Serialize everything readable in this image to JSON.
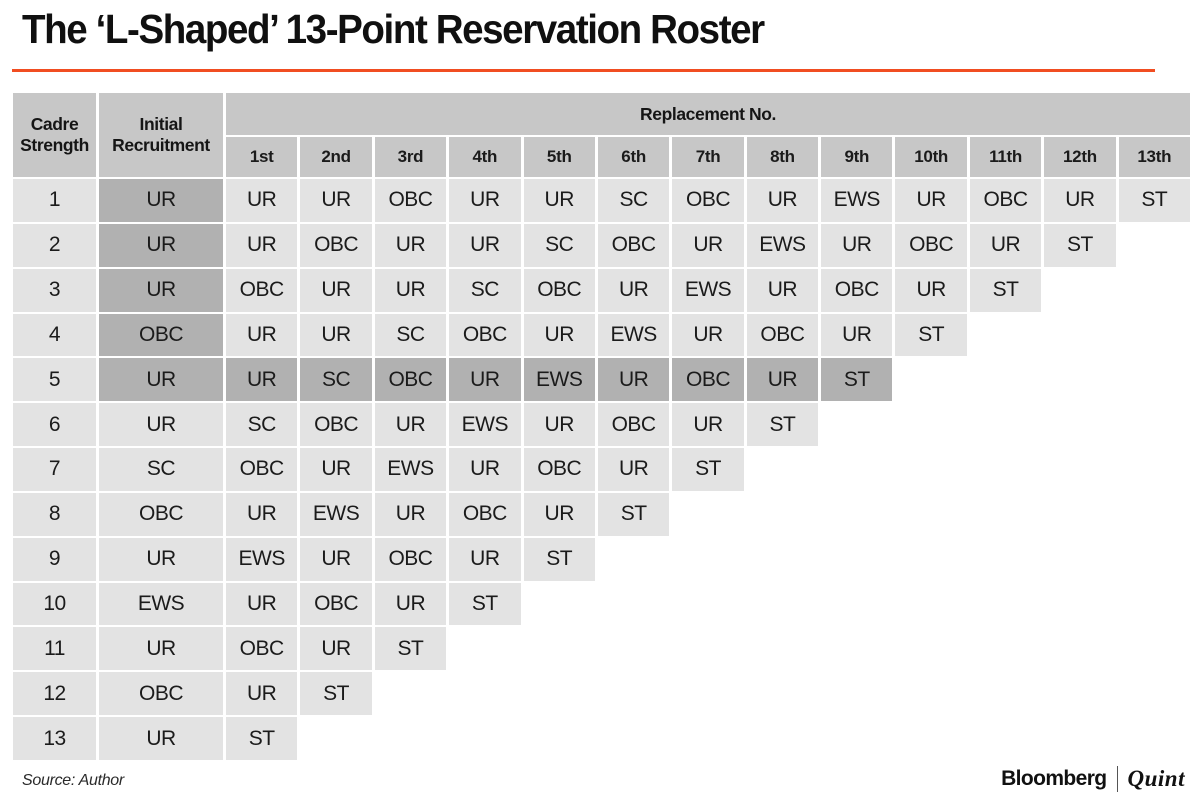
{
  "title": "The ‘L-Shaped’ 13-Point Reservation Roster",
  "colors": {
    "accent_orange": "#f14d21",
    "header_gray": "#c7c7c7",
    "cell_gray": "#e3e3e3",
    "highlight_gray": "#b1b1b1",
    "text": "#1b1b1b"
  },
  "footer": {
    "source": "Source: Author",
    "brand_left": "Bloomberg",
    "brand_right": "Quint"
  },
  "chart_data": {
    "type": "table",
    "title": "The ‘L-Shaped’ 13-Point Reservation Roster",
    "header": {
      "cadre": "Cadre Strength",
      "initial": "Initial Recruitment",
      "replacement": "Replacement No."
    },
    "ordinals": [
      "1st",
      "2nd",
      "3rd",
      "4th",
      "5th",
      "6th",
      "7th",
      "8th",
      "9th",
      "10th",
      "11th",
      "12th",
      "13th"
    ],
    "rows": [
      {
        "cadre": "1",
        "initial": "UR",
        "initial_highlight": true,
        "highlight": false,
        "replacements": [
          "UR",
          "UR",
          "OBC",
          "UR",
          "UR",
          "SC",
          "OBC",
          "UR",
          "EWS",
          "UR",
          "OBC",
          "UR",
          "ST"
        ]
      },
      {
        "cadre": "2",
        "initial": "UR",
        "initial_highlight": true,
        "highlight": false,
        "replacements": [
          "UR",
          "OBC",
          "UR",
          "UR",
          "SC",
          "OBC",
          "UR",
          "EWS",
          "UR",
          "OBC",
          "UR",
          "ST"
        ]
      },
      {
        "cadre": "3",
        "initial": "UR",
        "initial_highlight": true,
        "highlight": false,
        "replacements": [
          "OBC",
          "UR",
          "UR",
          "SC",
          "OBC",
          "UR",
          "EWS",
          "UR",
          "OBC",
          "UR",
          "ST"
        ]
      },
      {
        "cadre": "4",
        "initial": "OBC",
        "initial_highlight": true,
        "highlight": false,
        "replacements": [
          "UR",
          "UR",
          "SC",
          "OBC",
          "UR",
          "EWS",
          "UR",
          "OBC",
          "UR",
          "ST"
        ]
      },
      {
        "cadre": "5",
        "initial": "UR",
        "initial_highlight": true,
        "highlight": true,
        "replacements": [
          "UR",
          "SC",
          "OBC",
          "UR",
          "EWS",
          "UR",
          "OBC",
          "UR",
          "ST"
        ]
      },
      {
        "cadre": "6",
        "initial": "UR",
        "initial_highlight": false,
        "highlight": false,
        "replacements": [
          "SC",
          "OBC",
          "UR",
          "EWS",
          "UR",
          "OBC",
          "UR",
          "ST"
        ]
      },
      {
        "cadre": "7",
        "initial": "SC",
        "initial_highlight": false,
        "highlight": false,
        "replacements": [
          "OBC",
          "UR",
          "EWS",
          "UR",
          "OBC",
          "UR",
          "ST"
        ]
      },
      {
        "cadre": "8",
        "initial": "OBC",
        "initial_highlight": false,
        "highlight": false,
        "replacements": [
          "UR",
          "EWS",
          "UR",
          "OBC",
          "UR",
          "ST"
        ]
      },
      {
        "cadre": "9",
        "initial": "UR",
        "initial_highlight": false,
        "highlight": false,
        "replacements": [
          "EWS",
          "UR",
          "OBC",
          "UR",
          "ST"
        ]
      },
      {
        "cadre": "10",
        "initial": "EWS",
        "initial_highlight": false,
        "highlight": false,
        "replacements": [
          "UR",
          "OBC",
          "UR",
          "ST"
        ]
      },
      {
        "cadre": "11",
        "initial": "UR",
        "initial_highlight": false,
        "highlight": false,
        "replacements": [
          "OBC",
          "UR",
          "ST"
        ]
      },
      {
        "cadre": "12",
        "initial": "OBC",
        "initial_highlight": false,
        "highlight": false,
        "replacements": [
          "UR",
          "ST"
        ]
      },
      {
        "cadre": "13",
        "initial": "UR",
        "initial_highlight": false,
        "highlight": false,
        "replacements": [
          "ST"
        ]
      }
    ]
  }
}
